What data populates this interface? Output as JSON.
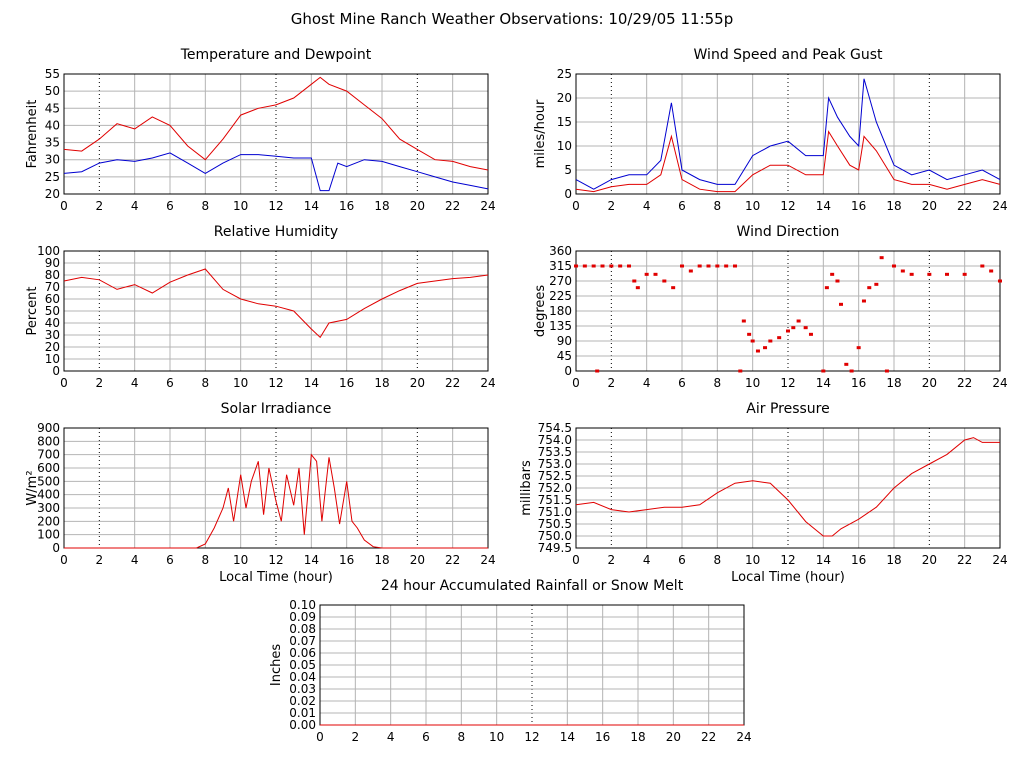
{
  "title": "Ghost Mine Ranch Weather Observations: 10/29/05 11:55p",
  "colors": {
    "red": "#e00000",
    "blue": "#0000d0",
    "grid": "#b4b4b4",
    "dot_grid": "#000000"
  },
  "chart_data": [
    {
      "id": "temperature",
      "type": "line",
      "title": "Temperature and Dewpoint",
      "xlabel": "",
      "ylabel": "Fahrenheit",
      "xlim": [
        0,
        24
      ],
      "ylim": [
        20,
        55
      ],
      "xticks": [
        0,
        2,
        4,
        6,
        8,
        10,
        12,
        14,
        16,
        18,
        20,
        22,
        24
      ],
      "yticks": [
        20,
        25,
        30,
        35,
        40,
        45,
        50,
        55
      ],
      "grid": true,
      "series": [
        {
          "color": "red",
          "x": [
            0,
            1,
            2,
            3,
            4,
            5,
            6,
            7,
            8,
            9,
            10,
            11,
            12,
            13,
            14,
            14.5,
            15,
            16,
            17,
            18,
            19,
            20,
            21,
            22,
            23,
            24
          ],
          "values": [
            33,
            32.5,
            36,
            40.5,
            39,
            42.5,
            40,
            34,
            30,
            36,
            43,
            45,
            46,
            48,
            52,
            54,
            52,
            50,
            46,
            42,
            36,
            33,
            30,
            29.5,
            28,
            27
          ]
        },
        {
          "color": "blue",
          "x": [
            0,
            1,
            2,
            3,
            4,
            5,
            6,
            7,
            8,
            9,
            10,
            11,
            12,
            13,
            14,
            14.5,
            15,
            15.5,
            16,
            17,
            18,
            19,
            20,
            21,
            22,
            23,
            24
          ],
          "values": [
            26,
            26.5,
            29,
            30,
            29.5,
            30.5,
            32,
            29,
            26,
            29,
            31.5,
            31.5,
            31,
            30.5,
            30.5,
            21,
            21,
            29,
            28,
            30,
            29.5,
            28,
            26.5,
            25,
            23.5,
            22.5,
            21.5
          ]
        }
      ]
    },
    {
      "id": "wind_speed",
      "type": "line",
      "title": "Wind Speed and Peak Gust",
      "xlabel": "",
      "ylabel": "miles/hour",
      "xlim": [
        0,
        24
      ],
      "ylim": [
        0,
        25
      ],
      "xticks": [
        0,
        2,
        4,
        6,
        8,
        10,
        12,
        14,
        16,
        18,
        20,
        22,
        24
      ],
      "yticks": [
        0,
        5,
        10,
        15,
        20,
        25
      ],
      "grid": true,
      "series": [
        {
          "color": "blue",
          "x": [
            0,
            1,
            2,
            3,
            4,
            4.8,
            5.4,
            6,
            7,
            8,
            9,
            10,
            11,
            12,
            13,
            14,
            14.3,
            14.8,
            15.5,
            16,
            16.3,
            17,
            18,
            19,
            20,
            21,
            22,
            23,
            24
          ],
          "values": [
            3,
            1,
            3,
            4,
            4,
            7,
            19,
            5,
            3,
            2,
            2,
            8,
            10,
            11,
            8,
            8,
            20,
            16,
            12,
            10,
            24,
            15,
            6,
            4,
            5,
            3,
            4,
            5,
            3
          ]
        },
        {
          "color": "red",
          "x": [
            0,
            1,
            2,
            3,
            4,
            4.8,
            5.4,
            6,
            7,
            8,
            9,
            10,
            11,
            12,
            13,
            14,
            14.3,
            14.8,
            15.5,
            16,
            16.3,
            17,
            18,
            19,
            20,
            21,
            22,
            23,
            24
          ],
          "values": [
            1,
            0.5,
            1.5,
            2,
            2,
            4,
            12,
            3,
            1,
            0.5,
            0.5,
            4,
            6,
            6,
            4,
            4,
            13,
            10,
            6,
            5,
            12,
            9,
            3,
            2,
            2,
            1,
            2,
            3,
            2
          ]
        }
      ]
    },
    {
      "id": "humidity",
      "type": "line",
      "title": "Relative Humidity",
      "xlabel": "",
      "ylabel": "Percent",
      "xlim": [
        0,
        24
      ],
      "ylim": [
        0,
        100
      ],
      "xticks": [
        0,
        2,
        4,
        6,
        8,
        10,
        12,
        14,
        16,
        18,
        20,
        22,
        24
      ],
      "yticks": [
        0,
        10,
        20,
        30,
        40,
        50,
        60,
        70,
        80,
        90,
        100
      ],
      "grid": true,
      "series": [
        {
          "color": "red",
          "x": [
            0,
            1,
            2,
            3,
            4,
            5,
            6,
            7,
            8,
            9,
            10,
            11,
            12,
            13,
            14,
            14.5,
            15,
            16,
            17,
            18,
            19,
            20,
            21,
            22,
            23,
            24
          ],
          "values": [
            75,
            78,
            76,
            68,
            72,
            65,
            74,
            80,
            85,
            68,
            60,
            56,
            54,
            50,
            35,
            28,
            40,
            43,
            52,
            60,
            67,
            73,
            75,
            77,
            78,
            80
          ]
        }
      ]
    },
    {
      "id": "wind_direction",
      "type": "scatter",
      "title": "Wind Direction",
      "xlabel": "",
      "ylabel": "degrees",
      "xlim": [
        0,
        24
      ],
      "ylim": [
        0,
        360
      ],
      "xticks": [
        0,
        2,
        4,
        6,
        8,
        10,
        12,
        14,
        16,
        18,
        20,
        22,
        24
      ],
      "yticks": [
        0,
        45,
        90,
        135,
        180,
        225,
        270,
        315,
        360
      ],
      "grid": true,
      "series": [
        {
          "color": "red",
          "x": [
            0,
            0.5,
            1,
            1.2,
            1.5,
            2,
            2.5,
            3,
            3.3,
            3.5,
            4,
            4.5,
            5,
            5.5,
            6,
            6.5,
            7,
            7.5,
            8,
            8.5,
            9,
            9.3,
            9.5,
            9.8,
            10,
            10.3,
            10.7,
            11,
            11.5,
            12,
            12.3,
            12.6,
            13,
            13.3,
            14,
            14.2,
            14.5,
            14.8,
            15,
            15.3,
            15.6,
            16,
            16.3,
            16.6,
            17,
            17.3,
            17.6,
            18,
            18.5,
            19,
            20,
            21,
            22,
            23,
            23.5,
            24
          ],
          "values": [
            315,
            315,
            315,
            0,
            315,
            315,
            315,
            315,
            270,
            250,
            290,
            290,
            270,
            250,
            315,
            300,
            315,
            315,
            315,
            315,
            315,
            0,
            150,
            110,
            90,
            60,
            70,
            90,
            100,
            120,
            130,
            150,
            130,
            110,
            0,
            250,
            290,
            270,
            200,
            20,
            0,
            70,
            210,
            250,
            260,
            340,
            0,
            315,
            300,
            290,
            290,
            290,
            290,
            315,
            300,
            270
          ]
        }
      ]
    },
    {
      "id": "solar",
      "type": "line",
      "title": "Solar Irradiance",
      "xlabel": "Local Time (hour)",
      "ylabel": "W/m²",
      "xlim": [
        0,
        24
      ],
      "ylim": [
        0,
        900
      ],
      "xticks": [
        0,
        2,
        4,
        6,
        8,
        10,
        12,
        14,
        16,
        18,
        20,
        22,
        24
      ],
      "yticks": [
        0,
        100,
        200,
        300,
        400,
        500,
        600,
        700,
        800,
        900
      ],
      "grid": true,
      "series": [
        {
          "color": "red",
          "x": [
            0,
            7.5,
            8,
            8.5,
            9,
            9.3,
            9.6,
            10,
            10.3,
            10.6,
            11,
            11.3,
            11.6,
            12,
            12.3,
            12.6,
            13,
            13.3,
            13.6,
            14,
            14.3,
            14.6,
            15,
            15.3,
            15.6,
            16,
            16.3,
            16.6,
            17,
            17.5,
            18,
            24
          ],
          "values": [
            0,
            0,
            30,
            150,
            300,
            450,
            200,
            550,
            300,
            500,
            650,
            250,
            600,
            350,
            200,
            550,
            320,
            600,
            100,
            700,
            650,
            200,
            680,
            450,
            180,
            500,
            200,
            150,
            60,
            10,
            0,
            0
          ]
        }
      ]
    },
    {
      "id": "pressure",
      "type": "line",
      "title": "Air Pressure",
      "xlabel": "Local Time (hour)",
      "ylabel": "millibars",
      "xlim": [
        0,
        24
      ],
      "ylim": [
        749.5,
        754.5
      ],
      "xticks": [
        0,
        2,
        4,
        6,
        8,
        10,
        12,
        14,
        16,
        18,
        20,
        22,
        24
      ],
      "yticks": [
        749.5,
        750.0,
        750.5,
        751.0,
        751.5,
        752.0,
        752.5,
        753.0,
        753.5,
        754.0,
        754.5
      ],
      "ytick_labels": [
        "749.5",
        "750.0",
        "750.5",
        "751.0",
        "751.5",
        "752.0",
        "752.5",
        "753.0",
        "753.5",
        "754.0",
        "754.5"
      ],
      "grid": true,
      "series": [
        {
          "color": "red",
          "x": [
            0,
            1,
            2,
            3,
            4,
            5,
            6,
            7,
            8,
            9,
            10,
            11,
            12,
            13,
            14,
            14.5,
            15,
            16,
            17,
            18,
            19,
            20,
            21,
            22,
            22.5,
            23,
            24
          ],
          "values": [
            751.3,
            751.4,
            751.1,
            751.0,
            751.1,
            751.2,
            751.2,
            751.3,
            751.8,
            752.2,
            752.3,
            752.2,
            751.5,
            750.6,
            750.0,
            750.0,
            750.3,
            750.7,
            751.2,
            752.0,
            752.6,
            753.0,
            753.4,
            754.0,
            754.1,
            753.9,
            753.9
          ]
        }
      ]
    },
    {
      "id": "rainfall",
      "type": "line",
      "title": "24 hour Accumulated Rainfall or Snow Melt",
      "xlabel": "",
      "ylabel": "Inches",
      "xlim": [
        0,
        24
      ],
      "ylim": [
        0,
        0.1
      ],
      "xticks": [
        0,
        2,
        4,
        6,
        8,
        10,
        12,
        14,
        16,
        18,
        20,
        22,
        24
      ],
      "yticks": [
        0,
        0.01,
        0.02,
        0.03,
        0.04,
        0.05,
        0.06,
        0.07,
        0.08,
        0.09,
        0.1
      ],
      "ytick_labels": [
        "0.00",
        "0.01",
        "0.02",
        "0.03",
        "0.04",
        "0.05",
        "0.06",
        "0.07",
        "0.08",
        "0.09",
        "0.10"
      ],
      "grid": true,
      "series": [
        {
          "color": "red",
          "x": [
            0,
            24
          ],
          "values": [
            0,
            0
          ]
        }
      ]
    }
  ]
}
